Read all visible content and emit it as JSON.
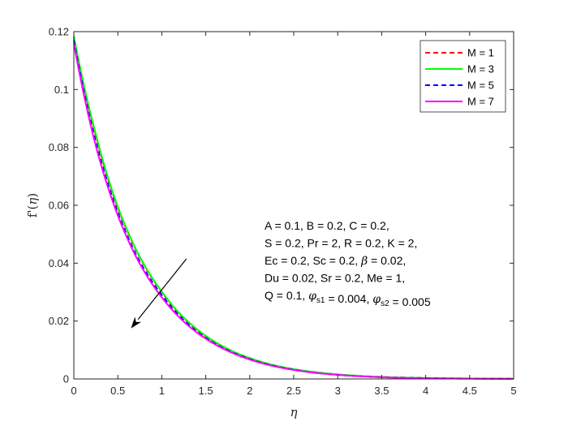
{
  "chart_data": {
    "type": "line",
    "xlabel": "η",
    "ylabel": "f'(η)",
    "xlim": [
      0,
      5
    ],
    "ylim": [
      0,
      0.12
    ],
    "xticks": [
      0,
      0.5,
      1,
      1.5,
      2,
      2.5,
      3,
      3.5,
      4,
      4.5,
      5
    ],
    "xtick_labels": [
      "0",
      "0.5",
      "1",
      "1.5",
      "2",
      "2.5",
      "3",
      "3.5",
      "4",
      "4.5",
      "5"
    ],
    "yticks": [
      0,
      0.02,
      0.04,
      0.06,
      0.08,
      0.1,
      0.12
    ],
    "ytick_labels": [
      "0",
      "0.02",
      "0.04",
      "0.06",
      "0.08",
      "0.1",
      "0.12"
    ],
    "grid": false,
    "legend_position": "top-right",
    "x": [
      0,
      0.25,
      0.5,
      0.75,
      1,
      1.25,
      1.5,
      1.75,
      2,
      2.5,
      3,
      3.5,
      4,
      4.5,
      5
    ],
    "series": [
      {
        "name": "M = 1",
        "color": "#ff0000",
        "style": "dashed",
        "values": [
          0.118,
          0.084,
          0.059,
          0.042,
          0.03,
          0.021,
          0.0147,
          0.0102,
          0.0071,
          0.0033,
          0.0015,
          0.0007,
          0.0003,
          0.00015,
          6e-05
        ]
      },
      {
        "name": "M = 3",
        "color": "#00ff00",
        "style": "solid",
        "values": [
          0.1185,
          0.0845,
          0.0595,
          0.0422,
          0.0302,
          0.0212,
          0.0149,
          0.0104,
          0.0072,
          0.0034,
          0.0016,
          0.0007,
          0.0003,
          0.00015,
          6e-05
        ]
      },
      {
        "name": "M = 5",
        "color": "#0000ff",
        "style": "dashed",
        "values": [
          0.117,
          0.082,
          0.0575,
          0.0405,
          0.029,
          0.0203,
          0.0142,
          0.0099,
          0.0069,
          0.0032,
          0.0014,
          0.0006,
          0.0003,
          0.00013,
          5e-05
        ]
      },
      {
        "name": "M = 7",
        "color": "#ff00ff",
        "style": "solid",
        "values": [
          0.116,
          0.0805,
          0.0565,
          0.0398,
          0.0282,
          0.0198,
          0.0139,
          0.0097,
          0.0067,
          0.0031,
          0.0014,
          0.0006,
          0.0002,
          0.0001,
          4e-05
        ]
      }
    ],
    "annotations": {
      "lines": [
        "A = 0.1, B = 0.2, C = 0.2,",
        "S = 0.2, Pr = 2, R = 0.2, K = 2,",
        "Ec = 0.2, Sc = 0.2, β = 0.02,",
        "Du = 0.02, Sr = 0.2, Me = 1,",
        "Q = 0.1, φs1 = 0.004, φs2 = 0.005"
      ],
      "arrow": {
        "from": [
          1.28,
          0.0415
        ],
        "to": [
          0.65,
          0.0175
        ],
        "meaning": "increasing M"
      }
    }
  }
}
